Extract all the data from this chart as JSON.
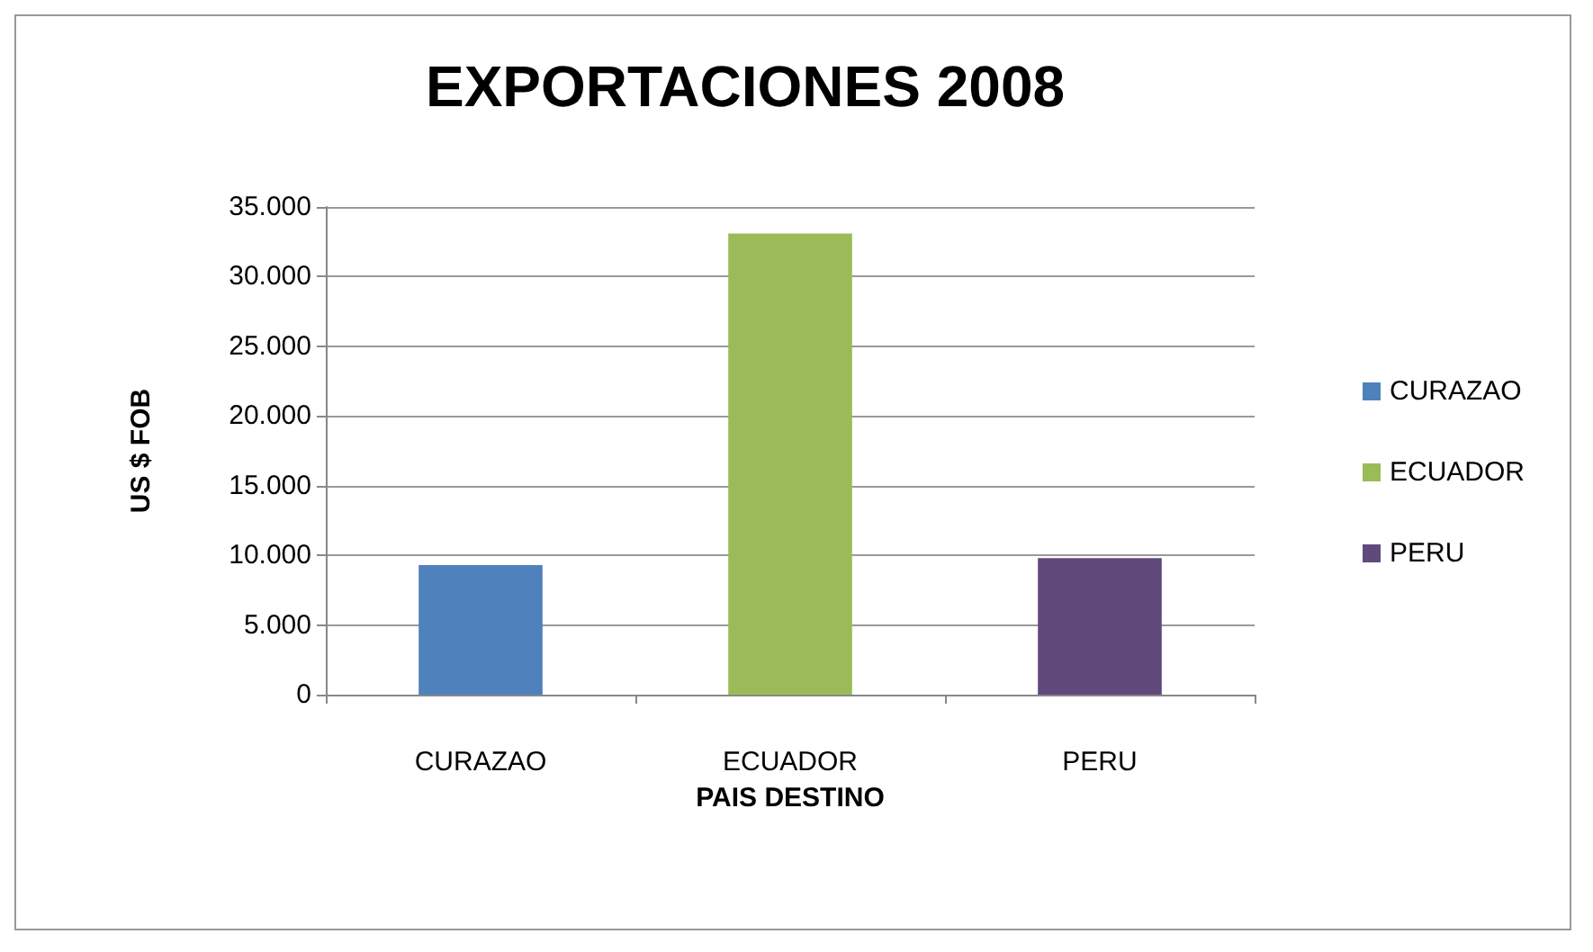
{
  "chart_data": {
    "type": "bar",
    "title": "EXPORTACIONES 2008",
    "xlabel": "PAIS DESTINO",
    "ylabel": "US $ FOB",
    "categories": [
      "CURAZAO",
      "ECUADOR",
      "PERU"
    ],
    "series": [
      {
        "name": "CURAZAO",
        "color": "#4f81bd",
        "values": [
          9300,
          null,
          null
        ]
      },
      {
        "name": "ECUADOR",
        "color": "#9bbb59",
        "values": [
          null,
          33100,
          null
        ]
      },
      {
        "name": "PERU",
        "color": "#604a7b",
        "values": [
          null,
          null,
          9800
        ]
      }
    ],
    "ylim": [
      0,
      35000
    ],
    "yticks": [
      0,
      {
        "value": 5000,
        "label": "5.000"
      },
      {
        "value": 10000,
        "label": "10.000"
      },
      {
        "value": 15000,
        "label": "15.000"
      },
      {
        "value": 20000,
        "label": "20.000"
      },
      {
        "value": 25000,
        "label": "25.000"
      },
      {
        "value": 30000,
        "label": "30.000"
      },
      {
        "value": 35000,
        "label": "35.000"
      }
    ],
    "grid": "y",
    "legend": "right"
  }
}
